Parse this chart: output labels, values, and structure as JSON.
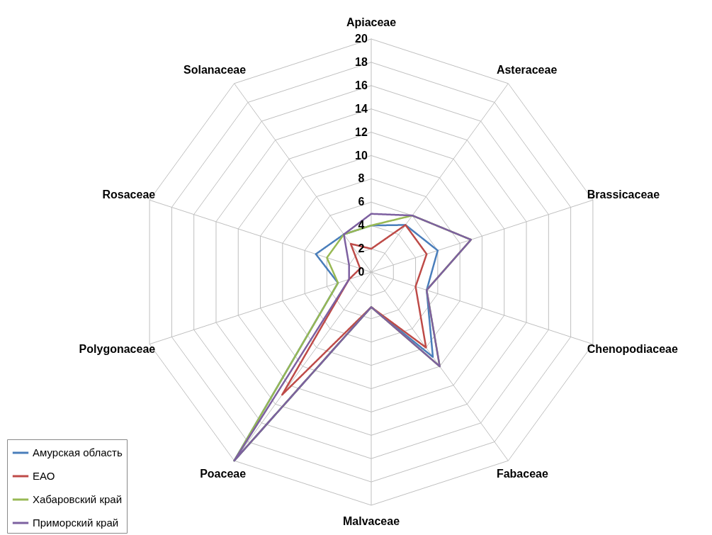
{
  "chart_data": {
    "type": "radar",
    "categories": [
      "Apiaceae",
      "Asteraceae",
      "Brassicaceae",
      "Chenopodiaceae",
      "Fabaceae",
      "Malvaceae",
      "Poaceae",
      "Polygonaceae",
      "Rosaceae",
      "Solanaceae"
    ],
    "series": [
      {
        "name": "Амурская область",
        "color": "#4a7ebb",
        "values": [
          4,
          5,
          6,
          5,
          9,
          3,
          20,
          3,
          5,
          4
        ]
      },
      {
        "name": "ЕАО",
        "color": "#be4b48",
        "values": [
          2,
          5,
          5,
          4,
          8,
          3,
          13,
          2,
          1,
          3
        ]
      },
      {
        "name": "Хабаровский край",
        "color": "#98b954",
        "values": [
          4,
          6,
          9,
          5,
          10,
          3,
          20,
          3,
          4,
          4
        ]
      },
      {
        "name": "Приморский край",
        "color": "#7d60a0",
        "values": [
          5,
          6,
          9,
          5,
          10,
          3,
          20,
          2,
          2,
          4
        ]
      }
    ],
    "ylim": [
      0,
      20
    ],
    "yticks": [
      0,
      2,
      4,
      6,
      8,
      10,
      12,
      14,
      16,
      18,
      20
    ],
    "grid": true,
    "legend": "bottom left",
    "marker": "none",
    "line_style": "solid"
  }
}
